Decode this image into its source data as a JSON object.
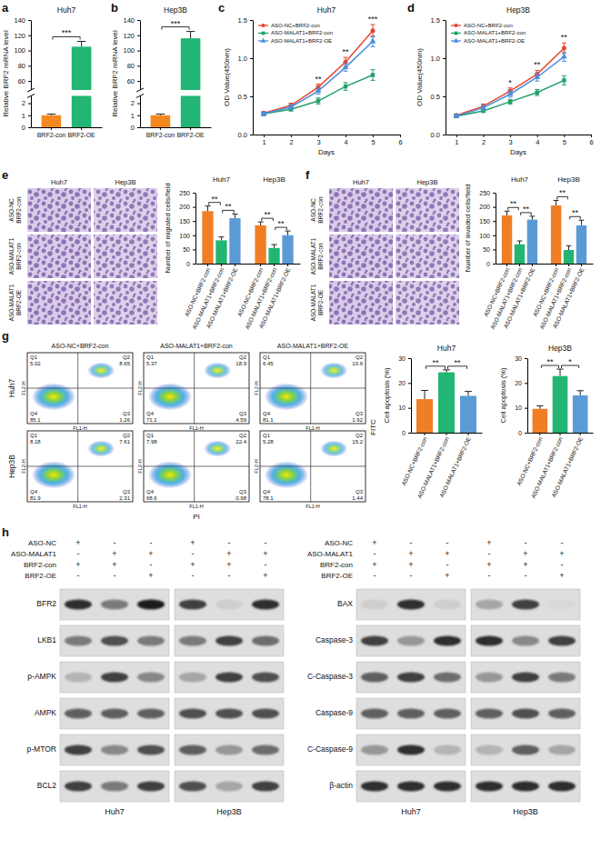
{
  "chart_data": [
    {
      "label": "a",
      "type": "bar",
      "title": "Huh7",
      "y_label": "Relative BRF2 mRNA level",
      "categories": [
        "BRF2-con",
        "BRF2-OE"
      ],
      "values": [
        1,
        105
      ],
      "errors": [
        0.1,
        7
      ],
      "colors": [
        "#f5891f",
        "#22b573"
      ],
      "ylim": [
        0,
        140
      ],
      "y_break": [
        2.5,
        50
      ],
      "yticks": [
        0,
        1,
        2,
        60,
        80,
        100,
        120,
        140
      ],
      "comparisons": [
        {
          "pair": [
            "BRF2-con",
            "BRF2-OE"
          ],
          "text": "***"
        }
      ]
    },
    {
      "label": "b",
      "type": "bar",
      "title": "Hep3B",
      "y_label": "Relative BRF2 mRNA level",
      "categories": [
        "BRF2-con",
        "BRF2-OE"
      ],
      "values": [
        1,
        116
      ],
      "errors": [
        0.1,
        9
      ],
      "colors": [
        "#f5891f",
        "#22b573"
      ],
      "ylim": [
        0,
        140
      ],
      "y_break": [
        2.5,
        50
      ],
      "yticks": [
        0,
        1,
        2,
        60,
        80,
        100,
        120,
        140
      ],
      "comparisons": [
        {
          "pair": [
            "BRF2-con",
            "BRF2-OE"
          ],
          "text": "***"
        }
      ]
    },
    {
      "label": "c",
      "type": "line",
      "title": "Huh7",
      "x_label": "Days",
      "y_label": "OD Value(450nm)",
      "x": [
        1,
        2,
        3,
        4,
        5
      ],
      "xlim": [
        0.6,
        6
      ],
      "xticks": [
        1,
        2,
        3,
        4,
        5,
        6
      ],
      "ylim": [
        0,
        1.5
      ],
      "yticks": [
        {
          "value": 0,
          "label": "0.0"
        },
        0.5,
        {
          "value": 1,
          "label": "1.0"
        },
        1.5
      ],
      "legend": "top-left",
      "series": [
        {
          "name": "ASO-NC+BRF2-con",
          "color": "#e8452f",
          "marker": "circle",
          "values": [
            0.28,
            0.38,
            0.62,
            0.95,
            1.36
          ],
          "errors": [
            0.02,
            0.03,
            0.04,
            0.06,
            0.08
          ]
        },
        {
          "name": "ASO-MALAT1+BRF2-con",
          "color": "#22a06b",
          "marker": "square",
          "values": [
            0.27,
            0.33,
            0.44,
            0.63,
            0.78
          ],
          "errors": [
            0.02,
            0.02,
            0.04,
            0.05,
            0.07
          ]
        },
        {
          "name": "ASO-MALAT1+BRF2-OE",
          "color": "#4a8fdd",
          "marker": "triangle",
          "values": [
            0.27,
            0.36,
            0.57,
            0.88,
            1.22
          ],
          "errors": [
            0.02,
            0.03,
            0.04,
            0.05,
            0.07
          ]
        }
      ],
      "annotations": [
        {
          "x": 3,
          "text": "**"
        },
        {
          "x": 4,
          "text": "**"
        },
        {
          "x": 5,
          "text": "***"
        }
      ]
    },
    {
      "label": "d",
      "type": "line",
      "title": "Hep3B",
      "x_label": "Days",
      "y_label": "OD Value(450nm)",
      "x": [
        1,
        2,
        3,
        4,
        5
      ],
      "xlim": [
        0.6,
        6
      ],
      "xticks": [
        1,
        2,
        3,
        4,
        5,
        6
      ],
      "ylim": [
        0,
        1.5
      ],
      "yticks": [
        {
          "value": 0,
          "label": "0.0"
        },
        0.5,
        {
          "value": 1,
          "label": "1.0"
        },
        1.5
      ],
      "legend": "top-left",
      "series": [
        {
          "name": "ASO-NC+BRF2-con",
          "color": "#e8452f",
          "marker": "circle",
          "values": [
            0.25,
            0.37,
            0.57,
            0.79,
            1.13
          ],
          "errors": [
            0.02,
            0.03,
            0.04,
            0.05,
            0.07
          ]
        },
        {
          "name": "ASO-MALAT1+BRF2-con",
          "color": "#22a06b",
          "marker": "square",
          "values": [
            0.24,
            0.31,
            0.43,
            0.55,
            0.71
          ],
          "errors": [
            0.02,
            0.02,
            0.03,
            0.04,
            0.06
          ]
        },
        {
          "name": "ASO-MALAT1+BRF2-OE",
          "color": "#4a8fdd",
          "marker": "triangle",
          "values": [
            0.24,
            0.35,
            0.53,
            0.75,
            1.02
          ],
          "errors": [
            0.02,
            0.03,
            0.04,
            0.05,
            0.06
          ]
        }
      ],
      "annotations": [
        {
          "x": 3,
          "text": "*"
        },
        {
          "x": 4,
          "text": "**"
        },
        {
          "x": 5,
          "text": "**"
        }
      ]
    },
    {
      "label": "e",
      "type": "bar",
      "y_label": "Number of migrated cells/field",
      "categories": [
        "Huh7",
        "Hep3B"
      ],
      "ylim": [
        0,
        250
      ],
      "yticks": [
        0,
        50,
        100,
        150,
        200,
        250
      ],
      "series": [
        {
          "name": "ASO-NC+BRF2-con",
          "color": "#f07e26",
          "values": [
            185,
            135
          ],
          "errors": [
            18,
            12
          ]
        },
        {
          "name": "ASO-MALAT1+BRF2-con",
          "color": "#22b573",
          "values": [
            82,
            55
          ],
          "errors": [
            12,
            12
          ]
        },
        {
          "name": "ASO-MALAT1+BRF2-OE",
          "color": "#5b9bd5",
          "values": [
            160,
            100
          ],
          "errors": [
            15,
            15
          ]
        }
      ],
      "comparisons": [
        {
          "category": "Huh7",
          "pair": [
            "ASO-NC+BRF2-con",
            "ASO-MALAT1+BRF2-con"
          ],
          "text": "**"
        },
        {
          "category": "Huh7",
          "pair": [
            "ASO-MALAT1+BRF2-con",
            "ASO-MALAT1+BRF2-OE"
          ],
          "text": "**"
        },
        {
          "category": "Hep3B",
          "pair": [
            "ASO-NC+BRF2-con",
            "ASO-MALAT1+BRF2-con"
          ],
          "text": "**"
        },
        {
          "category": "Hep3B",
          "pair": [
            "ASO-MALAT1+BRF2-con",
            "ASO-MALAT1+BRF2-OE"
          ],
          "text": "**"
        }
      ]
    },
    {
      "label": "f",
      "type": "bar",
      "y_label": "Number of invaded cells/field",
      "categories": [
        "Huh7",
        "Hep3B"
      ],
      "ylim": [
        0,
        250
      ],
      "yticks": [
        0,
        50,
        100,
        150,
        200,
        250
      ],
      "series": [
        {
          "name": "ASO-NC+BRF2-con",
          "color": "#f07e26",
          "values": [
            170,
            205
          ],
          "errors": [
            15,
            18
          ]
        },
        {
          "name": "ASO-MALAT1+BRF2-con",
          "color": "#22b573",
          "values": [
            68,
            48
          ],
          "errors": [
            12,
            15
          ]
        },
        {
          "name": "ASO-MALAT1+BRF2-OE",
          "color": "#5b9bd5",
          "values": [
            155,
            135
          ],
          "errors": [
            12,
            18
          ]
        }
      ],
      "comparisons": [
        {
          "category": "Huh7",
          "pair": [
            "ASO-NC+BRF2-con",
            "ASO-MALAT1+BRF2-con"
          ],
          "text": "**"
        },
        {
          "category": "Huh7",
          "pair": [
            "ASO-MALAT1+BRF2-con",
            "ASO-MALAT1+BRF2-OE"
          ],
          "text": "**"
        },
        {
          "category": "Hep3B",
          "pair": [
            "ASO-NC+BRF2-con",
            "ASO-MALAT1+BRF2-con"
          ],
          "text": "**"
        },
        {
          "category": "Hep3B",
          "pair": [
            "ASO-MALAT1+BRF2-con",
            "ASO-MALAT1+BRF2-OE"
          ],
          "text": "**"
        }
      ]
    },
    {
      "type": "bar",
      "title": "Huh7",
      "y_label": "Cell apoptosis (%)",
      "categories": [
        "ASO-NC+BRF2-con",
        "ASO-MALAT1+BRF2-con",
        "ASO-MALAT1+BRF2-OE"
      ],
      "values": [
        13.5,
        24.3,
        14.8
      ],
      "errors": [
        3.5,
        1,
        1.8
      ],
      "colors": [
        "#f07e26",
        "#22b573",
        "#5b9bd5"
      ],
      "ylim": [
        0,
        30
      ],
      "yticks": [
        0,
        10,
        20,
        30
      ],
      "comparisons": [
        {
          "pair": [
            "ASO-NC+BRF2-con",
            "ASO-MALAT1+BRF2-con"
          ],
          "text": "**"
        },
        {
          "pair": [
            "ASO-MALAT1+BRF2-con",
            "ASO-MALAT1+BRF2-OE"
          ],
          "text": "**"
        }
      ]
    },
    {
      "type": "bar",
      "title": "Hep3B",
      "y_label": "Cell apoptosis (%)",
      "categories": [
        "ASO-NC+BRF2-con",
        "ASO-MALAT1+BRF2-con",
        "ASO-MALAT1+BRF2-OE"
      ],
      "values": [
        9.6,
        22.8,
        15
      ],
      "errors": [
        1.2,
        2.8,
        1.9
      ],
      "colors": [
        "#f07e26",
        "#22b573",
        "#5b9bd5"
      ],
      "ylim": [
        0,
        30
      ],
      "yticks": [
        0,
        10,
        20,
        30
      ],
      "comparisons": [
        {
          "pair": [
            "ASO-NC+BRF2-con",
            "ASO-MALAT1+BRF2-con"
          ],
          "text": "**"
        },
        {
          "pair": [
            "ASO-MALAT1+BRF2-con",
            "ASO-MALAT1+BRF2-OE"
          ],
          "text": "*"
        }
      ]
    }
  ],
  "images": {
    "e": {
      "columns": [
        "Huh7",
        "Hep3B"
      ],
      "rows": [
        [
          "ASO-NC",
          "BRF2-con"
        ],
        [
          "ASO-MALAT1",
          "BRF2-con"
        ],
        [
          "ASO-MALAT1",
          "BRF2-OE"
        ]
      ]
    },
    "f": {
      "columns": [
        "Huh7",
        "Hep3B"
      ],
      "rows": [
        [
          "ASO-NC",
          "BRF2-con"
        ],
        [
          "ASO-MALAT1",
          "BRF2-con"
        ],
        [
          "ASO-MALAT1",
          "BRF2-OE"
        ]
      ]
    }
  },
  "flow": {
    "label": "g",
    "rows": [
      "Huh7",
      "Hep3B"
    ],
    "columns": [
      "ASO-NC+BRF2-con",
      "ASO-MALAT1+BRF2-con",
      "ASO-MALAT1+BRF2-OE"
    ],
    "x_label": "PI",
    "y_label": "FITC",
    "plot_x_label": "FL1-H",
    "plot_y_label": "FL2-H",
    "quadrants": [
      "Q1",
      "Q2",
      "Q3",
      "Q4"
    ],
    "values": [
      [
        [
          5.02,
          8.65,
          1.26,
          85.1
        ],
        [
          5.37,
          18.9,
          4.59,
          71.1
        ],
        [
          6.45,
          10.6,
          1.92,
          81.1
        ]
      ],
      [
        [
          8.18,
          7.61,
          2.31,
          81.9
        ],
        [
          7.98,
          22.4,
          0.98,
          68.6
        ],
        [
          5.28,
          15.2,
          1.44,
          78.1
        ]
      ]
    ]
  },
  "blots": {
    "label": "h",
    "cells": [
      "Huh7",
      "Hep3B"
    ],
    "treatments": [
      {
        "name": "ASO-NC",
        "signs": [
          "+",
          "-",
          "-"
        ]
      },
      {
        "name": "ASO-MALAT1",
        "signs": [
          "-",
          "+",
          "+"
        ]
      },
      {
        "name": "BRF2-con",
        "signs": [
          "+",
          "+",
          "-"
        ]
      },
      {
        "name": "BRF2-OE",
        "signs": [
          "-",
          "-",
          "+"
        ]
      }
    ],
    "panels": [
      {
        "proteins": [
          {
            "name": "BFR2",
            "bands": [
              0.85,
              0.6,
              0.9,
              0.8,
              0.3,
              0.85
            ]
          },
          {
            "name": "LKB1",
            "bands": [
              0.6,
              0.75,
              0.6,
              0.6,
              0.8,
              0.65
            ]
          },
          {
            "name": "p-AMPK",
            "bands": [
              0.4,
              0.8,
              0.55,
              0.45,
              0.8,
              0.75
            ]
          },
          {
            "name": "AMPK",
            "bands": [
              0.7,
              0.7,
              0.7,
              0.75,
              0.75,
              0.75
            ]
          },
          {
            "name": "p-MTOR",
            "bands": [
              0.8,
              0.55,
              0.75,
              0.7,
              0.5,
              0.65
            ]
          },
          {
            "name": "BCL2",
            "bands": [
              0.8,
              0.6,
              0.8,
              0.75,
              0.45,
              0.8
            ]
          }
        ]
      },
      {
        "proteins": [
          {
            "name": "BAX",
            "bands": [
              0.3,
              0.85,
              0.3,
              0.45,
              0.8,
              0.25
            ]
          },
          {
            "name": "Caspase-3",
            "bands": [
              0.8,
              0.5,
              0.85,
              0.85,
              0.55,
              0.8
            ]
          },
          {
            "name": "C-Caspase-3",
            "bands": [
              0.7,
              0.8,
              0.65,
              0.5,
              0.8,
              0.6
            ]
          },
          {
            "name": "Caspase-9",
            "bands": [
              0.7,
              0.7,
              0.7,
              0.7,
              0.75,
              0.7
            ]
          },
          {
            "name": "C-Caspase-9",
            "bands": [
              0.5,
              0.85,
              0.4,
              0.4,
              0.7,
              0.45
            ]
          },
          {
            "name": "β-actin",
            "bands": [
              0.85,
              0.85,
              0.85,
              0.85,
              0.85,
              0.85
            ]
          }
        ]
      }
    ]
  }
}
